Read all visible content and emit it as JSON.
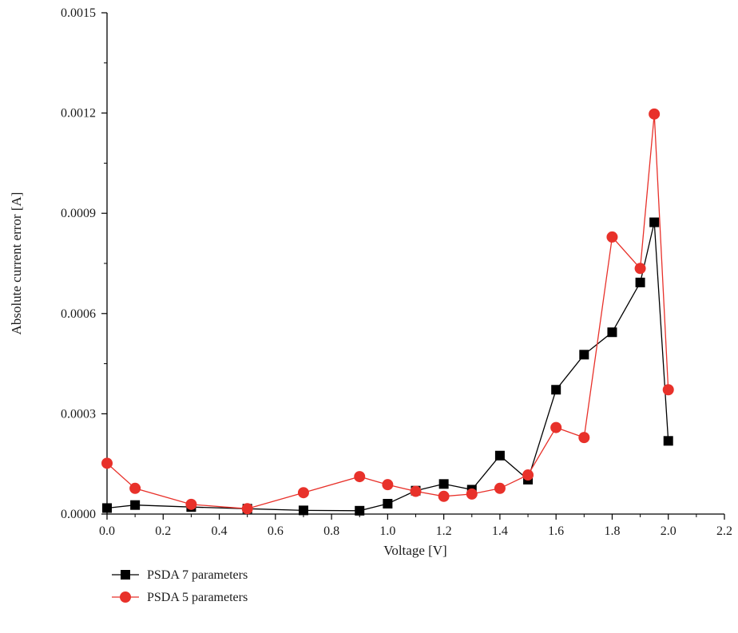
{
  "chart_data": {
    "type": "line",
    "xlabel": "Voltage [V]",
    "ylabel": "Absolute current error [A]",
    "xlim": [
      0.0,
      2.2
    ],
    "ylim": [
      0.0,
      0.0015
    ],
    "xticks": [
      "0.0",
      "0.2",
      "0.4",
      "0.6",
      "0.8",
      "1.0",
      "1.2",
      "1.4",
      "1.6",
      "1.8",
      "2.0",
      "2.2"
    ],
    "yticks": [
      "0.0000",
      "0.0003",
      "0.0006",
      "0.0009",
      "0.0012",
      "0.0015"
    ],
    "grid": false,
    "legend_position": "bottom-left",
    "series": [
      {
        "name": "PSDA 7 parameters",
        "color": "#000000",
        "marker": "square",
        "x": [
          0.0,
          0.1,
          0.3,
          0.5,
          0.7,
          0.9,
          1.0,
          1.1,
          1.2,
          1.3,
          1.4,
          1.5,
          1.6,
          1.7,
          1.8,
          1.9,
          1.95,
          2.0
        ],
        "values": [
          1.8e-05,
          2.7e-05,
          2.1e-05,
          1.6e-05,
          1.1e-05,
          1e-05,
          3.1e-05,
          7e-05,
          9e-05,
          7.3e-05,
          0.000175,
          0.000103,
          0.000372,
          0.000477,
          0.000544,
          0.000693,
          0.000873,
          0.000219
        ]
      },
      {
        "name": "PSDA 5 parameters",
        "color": "#e8312a",
        "marker": "circle",
        "x": [
          0.0,
          0.1,
          0.3,
          0.5,
          0.7,
          0.9,
          1.0,
          1.1,
          1.2,
          1.3,
          1.4,
          1.5,
          1.6,
          1.7,
          1.8,
          1.9,
          1.95,
          2.0
        ],
        "values": [
          0.000152,
          7.7e-05,
          2.9e-05,
          1.6e-05,
          6.4e-05,
          0.000112,
          8.8e-05,
          6.8e-05,
          5.3e-05,
          6e-05,
          7.7e-05,
          0.000117,
          0.000259,
          0.000229,
          0.000829,
          0.000735,
          0.001197,
          0.000372
        ]
      }
    ]
  }
}
